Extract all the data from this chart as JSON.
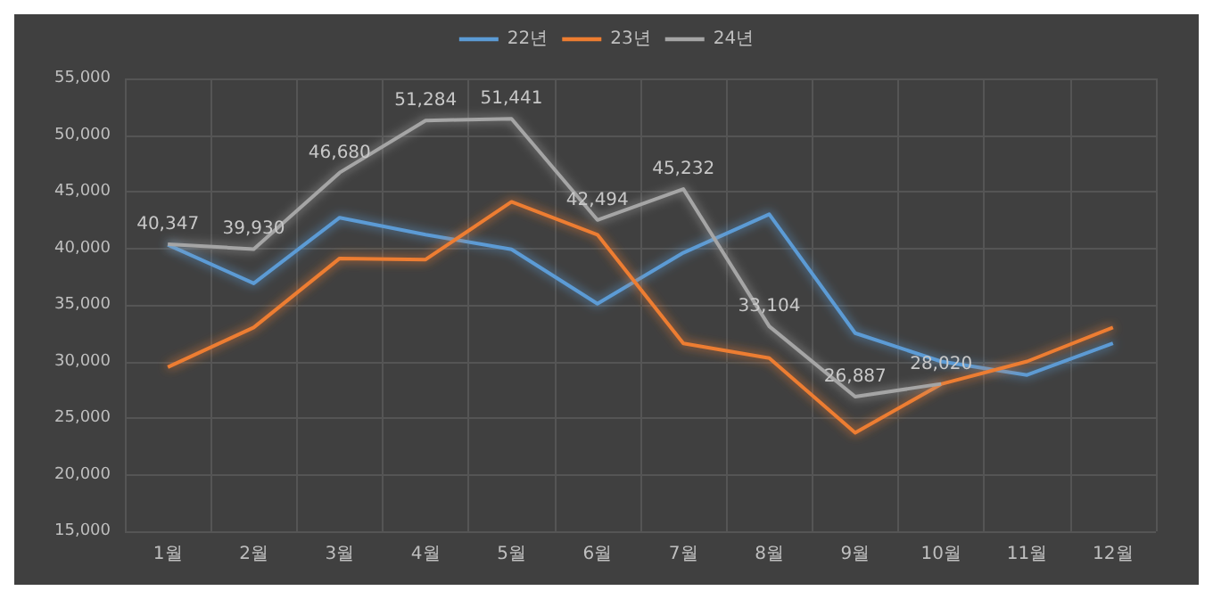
{
  "chart_data": {
    "type": "line",
    "categories": [
      "1월",
      "2월",
      "3월",
      "4월",
      "5월",
      "6월",
      "7월",
      "8월",
      "9월",
      "10월",
      "11월",
      "12월"
    ],
    "series": [
      {
        "name": "22년",
        "color": "#5b9bd5",
        "values": [
          40300,
          36900,
          42700,
          41200,
          39900,
          35100,
          39600,
          43000,
          32500,
          30000,
          28800,
          31600
        ]
      },
      {
        "name": "23년",
        "color": "#ed7d31",
        "values": [
          29500,
          33000,
          39100,
          39000,
          44100,
          41200,
          31600,
          30300,
          23700,
          28000,
          30000,
          33000
        ]
      },
      {
        "name": "24년",
        "color": "#a5a5a5",
        "values": [
          40347,
          39930,
          46680,
          51284,
          51441,
          42494,
          45232,
          33104,
          26887,
          28020,
          null,
          null
        ],
        "value_labels": [
          "40,347",
          "39,930",
          "46,680",
          "51,284",
          "51,441",
          "42,494",
          "45,232",
          "33,104",
          "26,887",
          "28,020",
          null,
          null
        ]
      }
    ],
    "ylim": [
      15000,
      55000
    ],
    "yticks": [
      {
        "value": 15000,
        "label": "15,000"
      },
      {
        "value": 20000,
        "label": "20,000"
      },
      {
        "value": 25000,
        "label": "25,000"
      },
      {
        "value": 30000,
        "label": "30,000"
      },
      {
        "value": 35000,
        "label": "35,000"
      },
      {
        "value": 40000,
        "label": "40,000"
      },
      {
        "value": 45000,
        "label": "45,000"
      },
      {
        "value": 50000,
        "label": "50,000"
      },
      {
        "value": 55000,
        "label": "55,000"
      }
    ],
    "grid": true,
    "legend": "top",
    "marker": "none",
    "line_style": "solid"
  }
}
